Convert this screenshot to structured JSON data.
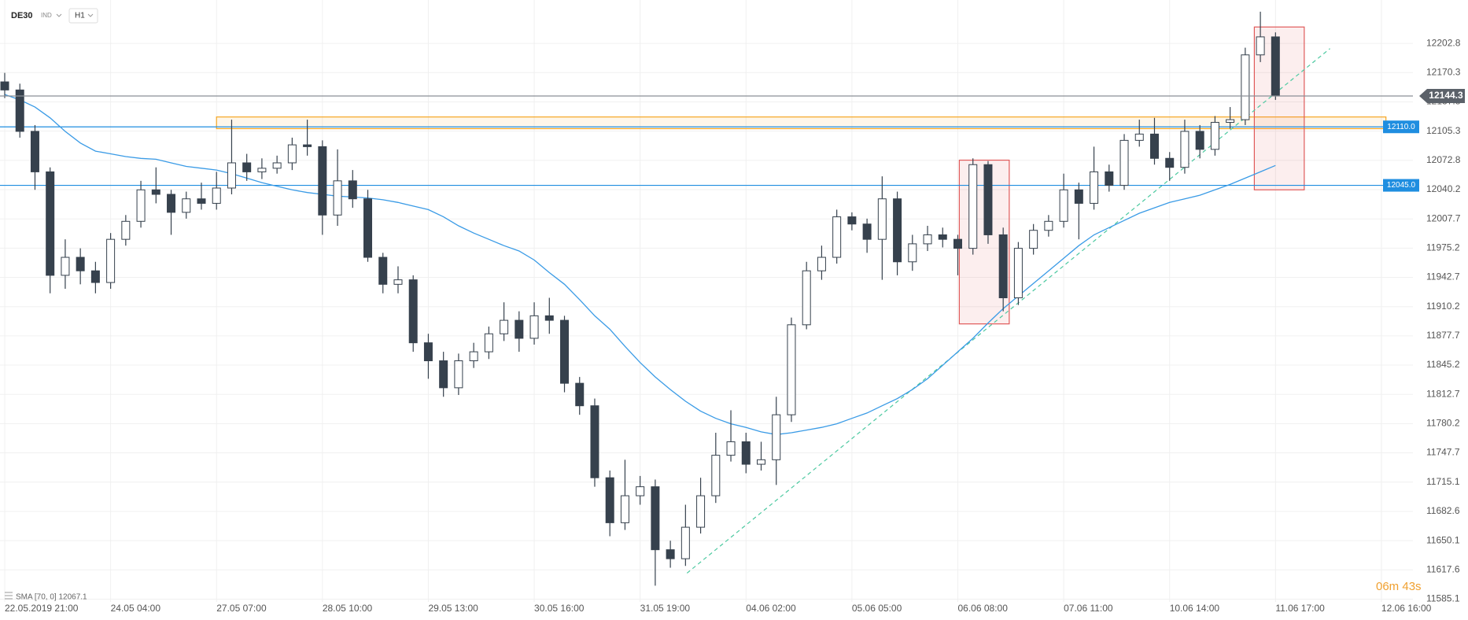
{
  "chart_data": {
    "type": "candlestick",
    "title": "DE30",
    "instrument_type": "IND",
    "timeframe": "H1",
    "timer": "06m 43s",
    "grid": true,
    "categories": [
      "22.05.2019 21:00",
      null,
      null,
      null,
      null,
      null,
      null,
      "24.05 04:00",
      null,
      null,
      null,
      null,
      null,
      null,
      "27.05 07:00",
      null,
      null,
      null,
      null,
      null,
      null,
      "28.05 10:00",
      null,
      null,
      null,
      null,
      null,
      null,
      "29.05 13:00",
      null,
      null,
      null,
      null,
      null,
      null,
      "30.05 16:00",
      null,
      null,
      null,
      null,
      null,
      null,
      "31.05 19:00",
      null,
      null,
      null,
      null,
      null,
      null,
      "04.06 02:00",
      null,
      null,
      null,
      null,
      null,
      null,
      "05.06 05:00",
      null,
      null,
      null,
      null,
      null,
      null,
      "06.06 08:00",
      null,
      null,
      null,
      null,
      null,
      null,
      "07.06 11:00",
      null,
      null,
      null,
      null,
      null,
      null,
      "10.06 14:00",
      null,
      null,
      null,
      null,
      null,
      null,
      "11.06 17:00",
      null,
      null,
      null,
      null,
      null,
      null,
      "12.06 16:00"
    ],
    "open": [
      12160,
      12151,
      12105,
      12060,
      11945,
      11965,
      11950,
      11937,
      11985,
      12005,
      12040,
      12035,
      12015,
      12030,
      12025,
      12042,
      12070,
      12060,
      12064,
      12070,
      12090,
      12088,
      12012,
      12050,
      12030,
      11965,
      11935,
      11940,
      11870,
      11850,
      11820,
      11850,
      11860,
      11880,
      11895,
      11875,
      11900,
      11895,
      11825,
      11800,
      11720,
      11670,
      11700,
      11710,
      11640,
      11630,
      11665,
      11700,
      11745,
      11760,
      11735,
      11740,
      11790,
      11890,
      11950,
      11965,
      12010,
      12002,
      11985,
      12030,
      11960,
      11980,
      11990,
      11985,
      11975,
      12068,
      11990,
      11920,
      11975,
      11995,
      12005,
      12040,
      12025,
      12060,
      12045,
      12095,
      12102,
      12075,
      12065,
      12105,
      12085,
      12115,
      12118,
      12190,
      12210,
      null,
      null,
      null,
      null,
      null,
      null,
      null
    ],
    "high": [
      12170,
      12158,
      12112,
      12065,
      11985,
      11975,
      11960,
      11992,
      12012,
      12050,
      12065,
      12040,
      12038,
      12048,
      12060,
      12118,
      12080,
      12075,
      12078,
      12098,
      12118,
      12095,
      12085,
      12062,
      12040,
      11970,
      11955,
      11945,
      11880,
      11860,
      11858,
      11870,
      11888,
      11915,
      11905,
      11915,
      11920,
      11900,
      11832,
      11808,
      11728,
      11740,
      11722,
      11718,
      11650,
      11690,
      11720,
      11770,
      11795,
      11770,
      11760,
      11810,
      11898,
      11960,
      11978,
      12018,
      12015,
      12008,
      12055,
      12038,
      11990,
      12000,
      11998,
      11990,
      12075,
      12072,
      11998,
      11982,
      12002,
      12012,
      12058,
      12048,
      12088,
      12068,
      12102,
      12118,
      12120,
      12082,
      12118,
      12112,
      12122,
      12132,
      12198,
      12238,
      12215,
      null,
      null,
      null,
      null,
      null,
      null,
      null
    ],
    "low": [
      12142,
      12098,
      12040,
      11925,
      11930,
      11935,
      11925,
      11930,
      11978,
      11998,
      12025,
      11990,
      12008,
      12018,
      12018,
      12035,
      12050,
      12052,
      12058,
      12062,
      12078,
      11990,
      12000,
      12020,
      11960,
      11925,
      11925,
      11860,
      11830,
      11810,
      11812,
      11842,
      11852,
      11872,
      11860,
      11868,
      11880,
      11815,
      11790,
      11710,
      11655,
      11662,
      11690,
      11600,
      11620,
      11622,
      11658,
      11692,
      11738,
      11725,
      11728,
      11712,
      11782,
      11885,
      11940,
      11958,
      11995,
      11970,
      11940,
      11945,
      11950,
      11972,
      11976,
      11945,
      11968,
      11980,
      11905,
      11912,
      11968,
      11988,
      11998,
      11985,
      12018,
      12038,
      12040,
      12088,
      12068,
      12050,
      12058,
      12075,
      12078,
      12108,
      12112,
      12182,
      12140,
      null,
      null,
      null,
      null,
      null,
      null,
      null
    ],
    "close": [
      12151,
      12105,
      12060,
      11945,
      11965,
      11950,
      11937,
      11985,
      12005,
      12040,
      12035,
      12015,
      12030,
      12025,
      12042,
      12070,
      12060,
      12064,
      12070,
      12090,
      12088,
      12012,
      12050,
      12030,
      11965,
      11935,
      11940,
      11870,
      11850,
      11820,
      11850,
      11860,
      11880,
      11895,
      11875,
      11900,
      11895,
      11825,
      11800,
      11720,
      11670,
      11700,
      11710,
      11640,
      11630,
      11665,
      11700,
      11745,
      11760,
      11735,
      11740,
      11790,
      11890,
      11950,
      11965,
      12010,
      12002,
      11985,
      12030,
      11960,
      11980,
      11990,
      11985,
      11975,
      12068,
      11990,
      11920,
      11975,
      11995,
      12005,
      12040,
      12025,
      12060,
      12045,
      12095,
      12102,
      12075,
      12065,
      12105,
      12085,
      12115,
      12118,
      12190,
      12210,
      12144.3,
      null,
      null,
      null,
      null,
      null,
      null,
      null
    ],
    "up_color": "#ffffff",
    "down_color": "#36414d",
    "series": [
      {
        "name": "SMA [70, 0] 12067.1",
        "color": "#3a9be6",
        "values": [
          12146,
          12140,
          12132,
          12120,
          12105,
          12092,
          12083,
          12080,
          12077,
          12075,
          12074,
          12070,
          12066,
          12064,
          12062,
          12058,
          12053,
          12048,
          12044,
          12040,
          12037,
          12035,
          12033,
          12032,
          12031,
          12029,
          12026,
          12022,
          12018,
          12010,
          12000,
          11992,
          11985,
          11978,
          11972,
          11962,
          11948,
          11935,
          11918,
          11900,
          11885,
          11866,
          11848,
          11832,
          11818,
          11805,
          11794,
          11786,
          11780,
          11776,
          11771,
          11768,
          11770,
          11773,
          11776,
          11780,
          11786,
          11792,
          11800,
          11808,
          11818,
          11830,
          11845,
          11860,
          11875,
          11892,
          11908,
          11922,
          11936,
          11950,
          11964,
          11978,
          11990,
          11998,
          12006,
          12014,
          12020,
          12026,
          12030,
          12034,
          12040,
          12046,
          12053,
          12060,
          12067.1,
          null,
          null,
          null,
          null,
          null,
          null,
          null
        ]
      }
    ],
    "ylim": [
      11582,
      12251
    ],
    "yticks": [
      12202.8,
      12170.3,
      12137.8,
      12105.3,
      12072.8,
      12040.2,
      12007.7,
      11975.2,
      11942.7,
      11910.2,
      11877.7,
      11845.2,
      11812.7,
      11780.2,
      11747.7,
      11715.1,
      11682.6,
      11650.1,
      11617.6,
      11585.1
    ],
    "levels": [
      {
        "value": 12110,
        "label": "12110.0",
        "color": "#1f8ee0"
      },
      {
        "value": 12045,
        "label": "12045.0",
        "color": "#1f8ee0"
      }
    ],
    "current_price": 12144.3,
    "zones": [
      {
        "xlim": [
          14,
          91.3
        ],
        "ylim": [
          12108,
          12121
        ],
        "color": "#f5a623"
      },
      {
        "xlim": [
          63.1,
          66.4
        ],
        "ylim": [
          11891,
          12073
        ],
        "color": "#e05a5a"
      },
      {
        "xlim": [
          82.6,
          85.9
        ],
        "ylim": [
          12040,
          12221
        ],
        "color": "#e05a5a"
      }
    ],
    "trendline": {
      "x": [
        45.1,
        87.6
      ],
      "y": [
        11614,
        12197
      ],
      "color": "#4cc9a0"
    }
  }
}
